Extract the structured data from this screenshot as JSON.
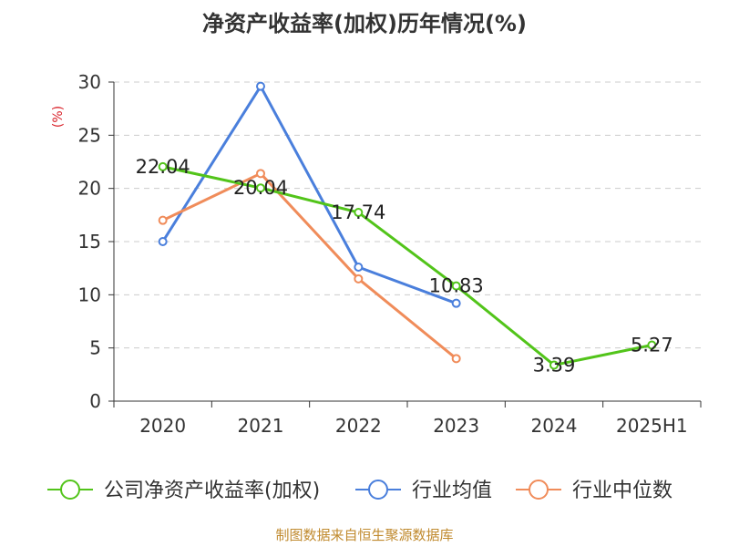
{
  "chart_data": {
    "type": "line",
    "title": "净资产收益率(加权)历年情况(%)",
    "ylabel": "(%)",
    "xlabel": "",
    "categories": [
      "2020",
      "2021",
      "2022",
      "2023",
      "2024",
      "2025H1"
    ],
    "ylim": [
      0,
      30
    ],
    "yticks": [
      0,
      5,
      10,
      15,
      20,
      25,
      30
    ],
    "grid": true,
    "legend_position": "bottom",
    "series": [
      {
        "name": "公司净资产收益率(加权)",
        "color": "#52c41a",
        "values": [
          22.04,
          20.04,
          17.74,
          10.83,
          3.39,
          5.27
        ],
        "labels": [
          "22.04",
          "20.04",
          "17.74",
          "10.83",
          "3.39",
          "5.27"
        ]
      },
      {
        "name": "行业均值",
        "color": "#4a7fdc",
        "values": [
          15.0,
          29.6,
          12.6,
          9.2,
          null,
          null
        ]
      },
      {
        "name": "行业中位数",
        "color": "#f08c5a",
        "values": [
          17.0,
          21.4,
          11.5,
          4.0,
          null,
          null
        ]
      }
    ]
  },
  "colors": {
    "axis": "#333333",
    "grid": "#cccccc",
    "ylabel": "#d9222a",
    "source": "#c08a2e"
  },
  "source_text": "制图数据来自恒生聚源数据库"
}
